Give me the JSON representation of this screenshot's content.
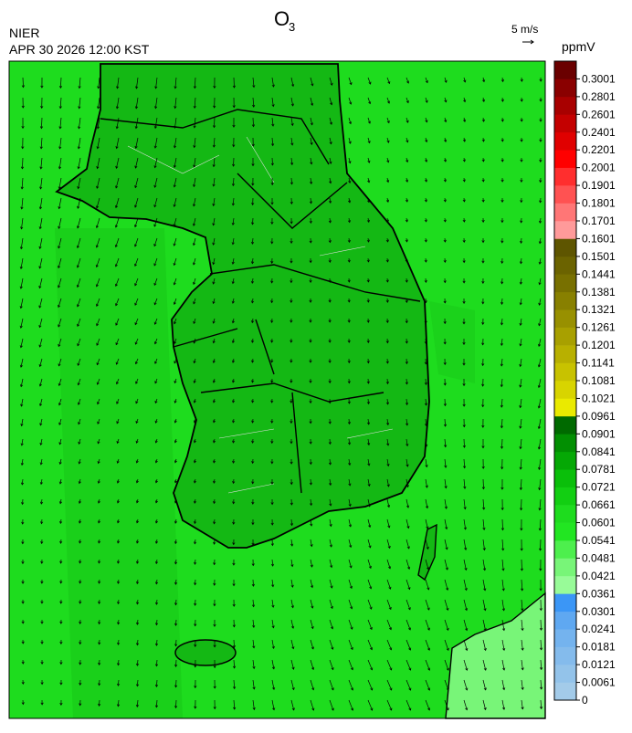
{
  "title": {
    "main": "O",
    "subscript": "3"
  },
  "agency": "NIER",
  "datetime": "APR 30 2026 12:00 KST",
  "wind_scale": "5 m/s",
  "colorbar": {
    "unit": "ppmV",
    "labels": [
      0,
      0.0061,
      0.0121,
      0.0181,
      0.0241,
      0.0301,
      0.0361,
      0.0421,
      0.0481,
      0.0541,
      0.0601,
      0.0661,
      0.0721,
      0.0781,
      0.0841,
      0.0901,
      0.0961,
      0.1021,
      0.1081,
      0.1141,
      0.1201,
      0.1261,
      0.1321,
      0.1381,
      0.1441,
      0.1501,
      0.1601,
      0.1701,
      0.1801,
      0.1901,
      0.2001,
      0.2201,
      0.2401,
      0.2601,
      0.2801,
      0.3001
    ],
    "colors": [
      "#a3cbe9",
      "#93c3ea",
      "#84bbec",
      "#74b3ee",
      "#5fa8f1",
      "#3b96f6",
      "#98fb98",
      "#78f578",
      "#4def4d",
      "#22e622",
      "#1edc1e",
      "#12cf12",
      "#0abf0a",
      "#05a805",
      "#028f02",
      "#006a00",
      "#eaea00",
      "#d8d400",
      "#c8c200",
      "#b8b000",
      "#a8a000",
      "#989000",
      "#888000",
      "#787000",
      "#6b6300",
      "#5e5500",
      "#ff9a9a",
      "#ff7676",
      "#ff5252",
      "#ff2e2e",
      "#ff0000",
      "#e00000",
      "#c40000",
      "#a80000",
      "#8a0000",
      "#6a0000"
    ]
  }
}
